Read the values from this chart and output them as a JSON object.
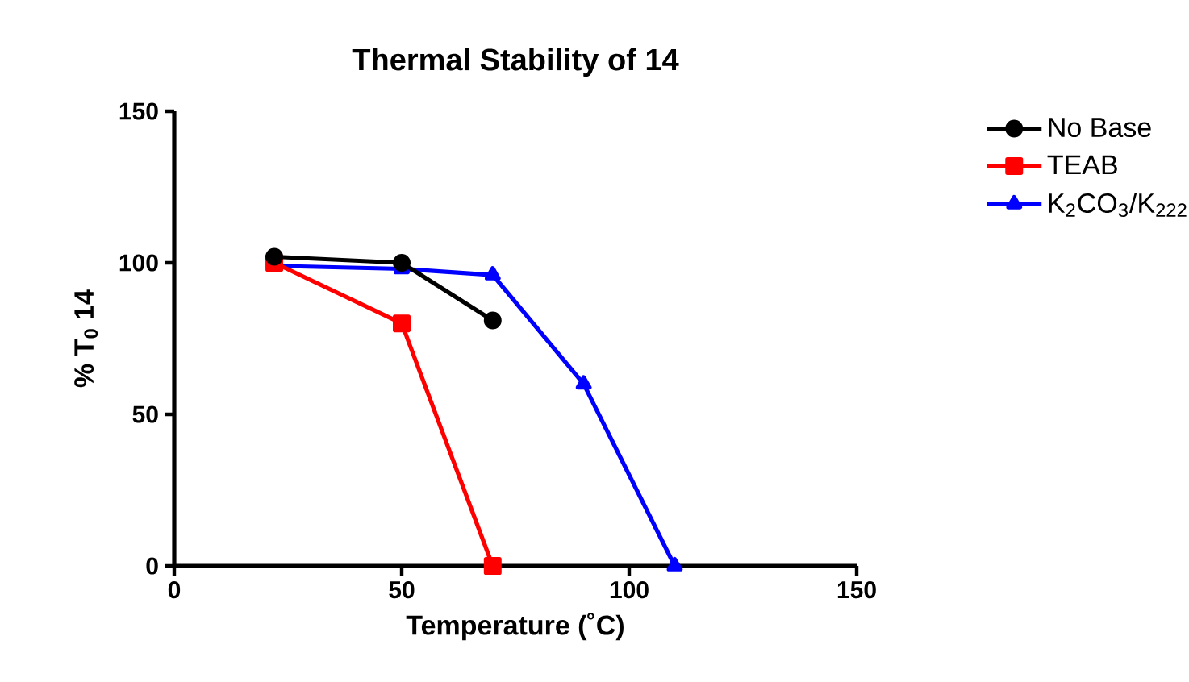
{
  "chart_data": {
    "type": "line",
    "title": "Thermal Stability of 14",
    "xlabel": "Temperature (˚C)",
    "ylabel": "% T$_{0}$ 14",
    "xlim": [
      0,
      150
    ],
    "xticks": [
      0,
      50,
      100,
      150
    ],
    "ylim": [
      0,
      150
    ],
    "yticks": [
      0,
      50,
      100,
      150
    ],
    "grid": false,
    "legend": "right",
    "line_style": "solid",
    "series": [
      {
        "name": "No Base",
        "color": "#000000",
        "marker": "circle",
        "x": [
          22,
          50,
          70
        ],
        "values": [
          102,
          100,
          81
        ]
      },
      {
        "name": "TEAB",
        "color": "#ff0000",
        "marker": "square",
        "x": [
          22,
          50,
          70
        ],
        "values": [
          100,
          80,
          0
        ]
      },
      {
        "name": "K$_{2}$CO$_{3}$/K$_{222}$",
        "color": "#0000ff",
        "marker": "triangle",
        "x": [
          22,
          50,
          70,
          90,
          110
        ],
        "values": [
          99,
          98,
          96,
          60,
          0
        ]
      }
    ]
  }
}
